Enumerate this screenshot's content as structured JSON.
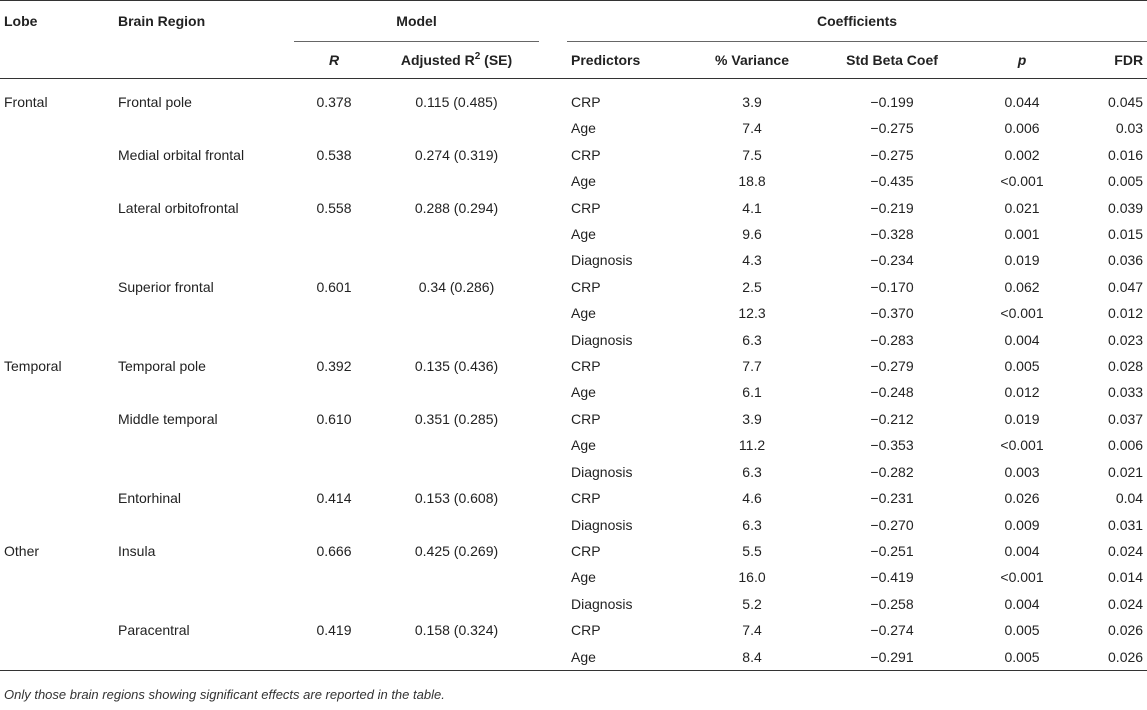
{
  "headers": {
    "lobe": "Lobe",
    "brain_region": "Brain Region",
    "model": "Model",
    "coefficients": "Coefficients",
    "r": "R",
    "adjusted_r2_prefix": "Adjusted R",
    "adjusted_r2_sup": "2",
    "adjusted_r2_suffix": " (SE)",
    "predictors": "Predictors",
    "pct_variance": "% Variance",
    "std_beta": "Std Beta Coef",
    "p": "p",
    "fdr": "FDR"
  },
  "rows": [
    {
      "lobe": "Frontal",
      "region": "Frontal pole",
      "r": "0.378",
      "adj": "0.115 (0.485)",
      "pred": "CRP",
      "var": "3.9",
      "beta": "−0.199",
      "p": "0.044",
      "fdr": "0.045"
    },
    {
      "lobe": "",
      "region": "",
      "r": "",
      "adj": "",
      "pred": "Age",
      "var": "7.4",
      "beta": "−0.275",
      "p": "0.006",
      "fdr": "0.03"
    },
    {
      "lobe": "",
      "region": "Medial orbital frontal",
      "r": "0.538",
      "adj": "0.274 (0.319)",
      "pred": "CRP",
      "var": "7.5",
      "beta": "−0.275",
      "p": "0.002",
      "fdr": "0.016"
    },
    {
      "lobe": "",
      "region": "",
      "r": "",
      "adj": "",
      "pred": "Age",
      "var": "18.8",
      "beta": "−0.435",
      "p": "<0.001",
      "fdr": "0.005"
    },
    {
      "lobe": "",
      "region": "Lateral orbitofrontal",
      "r": "0.558",
      "adj": "0.288 (0.294)",
      "pred": "CRP",
      "var": "4.1",
      "beta": "−0.219",
      "p": "0.021",
      "fdr": "0.039"
    },
    {
      "lobe": "",
      "region": "",
      "r": "",
      "adj": "",
      "pred": "Age",
      "var": "9.6",
      "beta": "−0.328",
      "p": "0.001",
      "fdr": "0.015"
    },
    {
      "lobe": "",
      "region": "",
      "r": "",
      "adj": "",
      "pred": "Diagnosis",
      "var": "4.3",
      "beta": "−0.234",
      "p": "0.019",
      "fdr": "0.036"
    },
    {
      "lobe": "",
      "region": "Superior frontal",
      "r": "0.601",
      "adj": "0.34 (0.286)",
      "pred": "CRP",
      "var": "2.5",
      "beta": "−0.170",
      "p": "0.062",
      "fdr": "0.047"
    },
    {
      "lobe": "",
      "region": "",
      "r": "",
      "adj": "",
      "pred": "Age",
      "var": "12.3",
      "beta": "−0.370",
      "p": "<0.001",
      "fdr": "0.012"
    },
    {
      "lobe": "",
      "region": "",
      "r": "",
      "adj": "",
      "pred": "Diagnosis",
      "var": "6.3",
      "beta": "−0.283",
      "p": "0.004",
      "fdr": "0.023"
    },
    {
      "lobe": "Temporal",
      "region": "Temporal pole",
      "r": "0.392",
      "adj": "0.135 (0.436)",
      "pred": "CRP",
      "var": "7.7",
      "beta": "−0.279",
      "p": "0.005",
      "fdr": "0.028"
    },
    {
      "lobe": "",
      "region": "",
      "r": "",
      "adj": "",
      "pred": "Age",
      "var": "6.1",
      "beta": "−0.248",
      "p": "0.012",
      "fdr": "0.033"
    },
    {
      "lobe": "",
      "region": "Middle temporal",
      "r": "0.610",
      "adj": "0.351 (0.285)",
      "pred": "CRP",
      "var": "3.9",
      "beta": "−0.212",
      "p": "0.019",
      "fdr": "0.037"
    },
    {
      "lobe": "",
      "region": "",
      "r": "",
      "adj": "",
      "pred": "Age",
      "var": "11.2",
      "beta": "−0.353",
      "p": "<0.001",
      "fdr": "0.006"
    },
    {
      "lobe": "",
      "region": "",
      "r": "",
      "adj": "",
      "pred": "Diagnosis",
      "var": "6.3",
      "beta": "−0.282",
      "p": "0.003",
      "fdr": "0.021"
    },
    {
      "lobe": "",
      "region": "Entorhinal",
      "r": "0.414",
      "adj": "0.153 (0.608)",
      "pred": "CRP",
      "var": "4.6",
      "beta": "−0.231",
      "p": "0.026",
      "fdr": "0.04"
    },
    {
      "lobe": "",
      "region": "",
      "r": "",
      "adj": "",
      "pred": "Diagnosis",
      "var": "6.3",
      "beta": "−0.270",
      "p": "0.009",
      "fdr": "0.031"
    },
    {
      "lobe": "Other",
      "region": "Insula",
      "r": "0.666",
      "adj": "0.425 (0.269)",
      "pred": "CRP",
      "var": "5.5",
      "beta": "−0.251",
      "p": "0.004",
      "fdr": "0.024"
    },
    {
      "lobe": "",
      "region": "",
      "r": "",
      "adj": "",
      "pred": "Age",
      "var": "16.0",
      "beta": "−0.419",
      "p": "<0.001",
      "fdr": "0.014"
    },
    {
      "lobe": "",
      "region": "",
      "r": "",
      "adj": "",
      "pred": "Diagnosis",
      "var": "5.2",
      "beta": "−0.258",
      "p": "0.004",
      "fdr": "0.024"
    },
    {
      "lobe": "",
      "region": "Paracentral",
      "r": "0.419",
      "adj": "0.158 (0.324)",
      "pred": "CRP",
      "var": "7.4",
      "beta": "−0.274",
      "p": "0.005",
      "fdr": "0.026"
    },
    {
      "lobe": "",
      "region": "",
      "r": "",
      "adj": "",
      "pred": "Age",
      "var": "8.4",
      "beta": "−0.291",
      "p": "0.005",
      "fdr": "0.026"
    }
  ],
  "footnote": "Only those brain regions showing significant effects are reported in the table."
}
